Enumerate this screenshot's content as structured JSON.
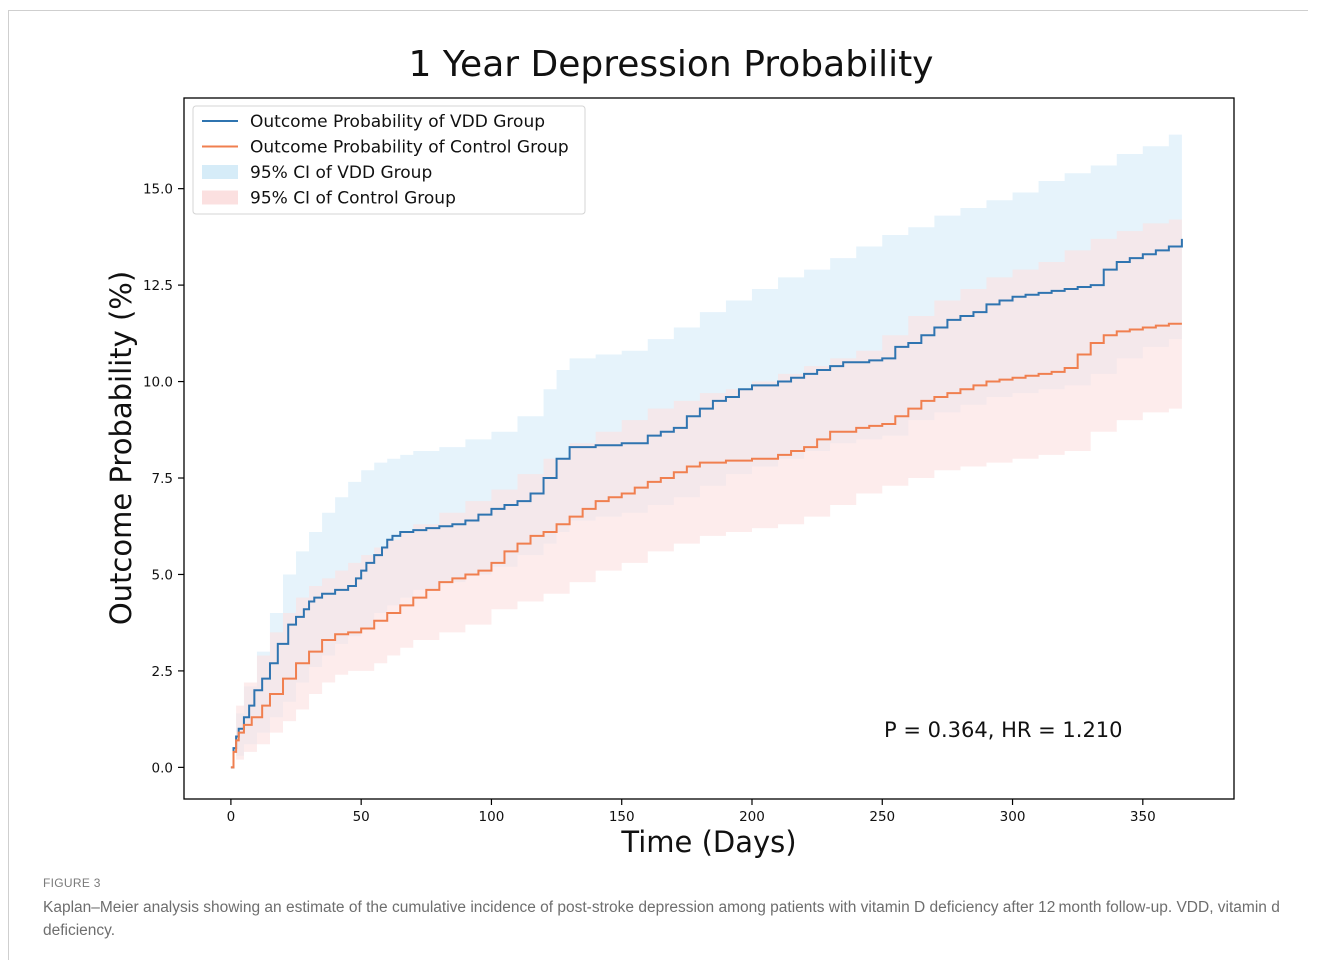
{
  "figure": {
    "label": "FIGURE 3",
    "caption": "Kaplan–Meier analysis showing an estimate of the cumulative incidence of post-stroke depression among patients with vitamin D deficiency after 12 month follow-up. VDD, vitamin d deficiency."
  },
  "chart_data": {
    "type": "line",
    "title": "1 Year Depression Probability",
    "xlabel": "Time (Days)",
    "ylabel": "Outcome Probability (%)",
    "xlim": [
      -18,
      385
    ],
    "ylim": [
      -0.82,
      17.35
    ],
    "xticks": [
      0,
      50,
      100,
      150,
      200,
      250,
      300,
      350
    ],
    "yticks": [
      0.0,
      2.5,
      5.0,
      7.5,
      10.0,
      12.5,
      15.0
    ],
    "ytick_labels": [
      "0.0",
      "2.5",
      "5.0",
      "7.5",
      "10.0",
      "12.5",
      "15.0"
    ],
    "grid": false,
    "legend_position": "top-left",
    "annotation": "P = 0.364, HR = 1.210",
    "series": [
      {
        "name": "Outcome Probability of VDD Group",
        "color": "#2f74b0",
        "x": [
          0,
          1,
          2,
          3,
          5,
          7,
          9,
          12,
          15,
          18,
          22,
          25,
          28,
          30,
          32,
          35,
          38,
          40,
          45,
          48,
          50,
          52,
          55,
          58,
          60,
          62,
          65,
          70,
          75,
          80,
          85,
          90,
          95,
          100,
          105,
          110,
          115,
          120,
          125,
          130,
          140,
          150,
          160,
          165,
          170,
          175,
          180,
          185,
          190,
          195,
          200,
          210,
          215,
          220,
          225,
          230,
          235,
          240,
          245,
          250,
          255,
          260,
          265,
          270,
          275,
          280,
          285,
          290,
          295,
          300,
          305,
          310,
          315,
          320,
          325,
          330,
          335,
          340,
          345,
          350,
          355,
          360,
          365
        ],
        "y": [
          0.0,
          0.5,
          0.8,
          1.0,
          1.3,
          1.6,
          2.0,
          2.3,
          2.7,
          3.2,
          3.7,
          3.9,
          4.1,
          4.3,
          4.4,
          4.5,
          4.5,
          4.6,
          4.7,
          4.9,
          5.1,
          5.3,
          5.5,
          5.7,
          5.9,
          6.0,
          6.1,
          6.15,
          6.2,
          6.25,
          6.3,
          6.4,
          6.55,
          6.7,
          6.8,
          6.9,
          7.1,
          7.5,
          8.0,
          8.3,
          8.35,
          8.4,
          8.6,
          8.7,
          8.8,
          9.1,
          9.3,
          9.5,
          9.6,
          9.8,
          9.9,
          10.0,
          10.1,
          10.2,
          10.3,
          10.4,
          10.5,
          10.5,
          10.55,
          10.6,
          10.9,
          11.0,
          11.2,
          11.4,
          11.6,
          11.7,
          11.8,
          12.0,
          12.1,
          12.2,
          12.25,
          12.3,
          12.35,
          12.4,
          12.45,
          12.5,
          12.9,
          13.1,
          13.2,
          13.3,
          13.4,
          13.5,
          13.7
        ]
      },
      {
        "name": "Outcome Probability of Control Group",
        "color": "#f07f4f",
        "x": [
          0,
          1,
          2,
          3,
          5,
          8,
          12,
          15,
          20,
          25,
          30,
          35,
          40,
          45,
          50,
          55,
          60,
          65,
          70,
          75,
          80,
          85,
          90,
          95,
          100,
          105,
          110,
          115,
          120,
          125,
          130,
          135,
          140,
          145,
          150,
          155,
          160,
          165,
          170,
          175,
          180,
          190,
          200,
          210,
          215,
          220,
          225,
          230,
          240,
          245,
          250,
          255,
          260,
          265,
          270,
          275,
          280,
          285,
          290,
          295,
          300,
          305,
          310,
          315,
          320,
          325,
          330,
          335,
          340,
          345,
          350,
          355,
          360,
          365
        ],
        "y": [
          0.0,
          0.4,
          0.7,
          0.9,
          1.1,
          1.3,
          1.6,
          1.9,
          2.3,
          2.7,
          3.0,
          3.3,
          3.45,
          3.5,
          3.6,
          3.8,
          4.0,
          4.2,
          4.4,
          4.6,
          4.8,
          4.9,
          5.0,
          5.1,
          5.3,
          5.6,
          5.8,
          6.0,
          6.1,
          6.3,
          6.5,
          6.7,
          6.9,
          7.0,
          7.1,
          7.25,
          7.4,
          7.5,
          7.65,
          7.8,
          7.9,
          7.95,
          8.0,
          8.1,
          8.2,
          8.3,
          8.5,
          8.7,
          8.8,
          8.85,
          8.9,
          9.1,
          9.3,
          9.5,
          9.6,
          9.7,
          9.8,
          9.9,
          10.0,
          10.05,
          10.1,
          10.15,
          10.2,
          10.25,
          10.35,
          10.7,
          11.0,
          11.2,
          11.3,
          11.35,
          11.4,
          11.45,
          11.5,
          11.5
        ]
      },
      {
        "name": "95% CI of VDD Group",
        "color": "#d6ecf8",
        "x": [
          0,
          2,
          5,
          10,
          15,
          20,
          25,
          30,
          35,
          40,
          45,
          50,
          55,
          60,
          65,
          70,
          80,
          90,
          100,
          110,
          120,
          125,
          130,
          140,
          150,
          160,
          170,
          180,
          190,
          200,
          210,
          220,
          230,
          240,
          250,
          260,
          270,
          280,
          290,
          300,
          310,
          320,
          330,
          340,
          350,
          360,
          365
        ],
        "lower": [
          0.0,
          0.3,
          0.6,
          0.9,
          1.3,
          1.7,
          2.2,
          2.6,
          2.9,
          3.2,
          3.4,
          3.6,
          4.0,
          4.2,
          4.4,
          4.6,
          4.8,
          5.0,
          5.2,
          5.5,
          5.8,
          6.1,
          6.4,
          6.5,
          6.6,
          6.8,
          7.0,
          7.3,
          7.6,
          7.8,
          8.0,
          8.2,
          8.4,
          8.5,
          8.6,
          9.0,
          9.2,
          9.4,
          9.6,
          9.7,
          9.8,
          9.9,
          10.2,
          10.6,
          10.9,
          11.1,
          11.2
        ],
        "upper": [
          0.0,
          1.4,
          2.1,
          3.0,
          4.0,
          5.0,
          5.6,
          6.1,
          6.6,
          7.0,
          7.4,
          7.7,
          7.9,
          8.0,
          8.1,
          8.2,
          8.3,
          8.5,
          8.7,
          9.1,
          9.8,
          10.3,
          10.6,
          10.7,
          10.8,
          11.1,
          11.4,
          11.8,
          12.1,
          12.4,
          12.7,
          12.9,
          13.2,
          13.5,
          13.8,
          14.0,
          14.3,
          14.5,
          14.7,
          14.9,
          15.2,
          15.4,
          15.6,
          15.9,
          16.1,
          16.4,
          16.6
        ]
      },
      {
        "name": "95% CI of Control Group",
        "color": "#fbe0e0",
        "x": [
          0,
          2,
          5,
          10,
          15,
          20,
          25,
          30,
          35,
          40,
          45,
          50,
          55,
          60,
          65,
          70,
          80,
          90,
          100,
          110,
          120,
          130,
          140,
          150,
          160,
          170,
          180,
          190,
          200,
          210,
          220,
          230,
          240,
          250,
          260,
          270,
          280,
          290,
          300,
          310,
          320,
          330,
          340,
          350,
          360,
          365
        ],
        "lower": [
          0.0,
          0.2,
          0.4,
          0.6,
          0.9,
          1.2,
          1.5,
          1.9,
          2.2,
          2.4,
          2.5,
          2.5,
          2.7,
          2.9,
          3.1,
          3.3,
          3.5,
          3.7,
          4.1,
          4.3,
          4.5,
          4.8,
          5.1,
          5.3,
          5.6,
          5.8,
          6.0,
          6.1,
          6.2,
          6.3,
          6.5,
          6.8,
          7.1,
          7.3,
          7.5,
          7.7,
          7.8,
          7.9,
          8.0,
          8.1,
          8.2,
          8.7,
          9.0,
          9.2,
          9.3,
          9.3
        ],
        "upper": [
          0.0,
          1.6,
          2.2,
          2.9,
          3.5,
          4.0,
          4.4,
          4.7,
          4.9,
          5.1,
          5.3,
          5.5,
          5.7,
          5.9,
          6.1,
          6.3,
          6.6,
          6.9,
          7.2,
          7.6,
          8.0,
          8.4,
          8.7,
          9.0,
          9.3,
          9.5,
          9.7,
          9.8,
          10.0,
          10.2,
          10.4,
          10.6,
          10.8,
          11.2,
          11.7,
          12.1,
          12.4,
          12.7,
          12.9,
          13.1,
          13.4,
          13.7,
          13.9,
          14.1,
          14.2,
          14.2
        ]
      }
    ]
  }
}
